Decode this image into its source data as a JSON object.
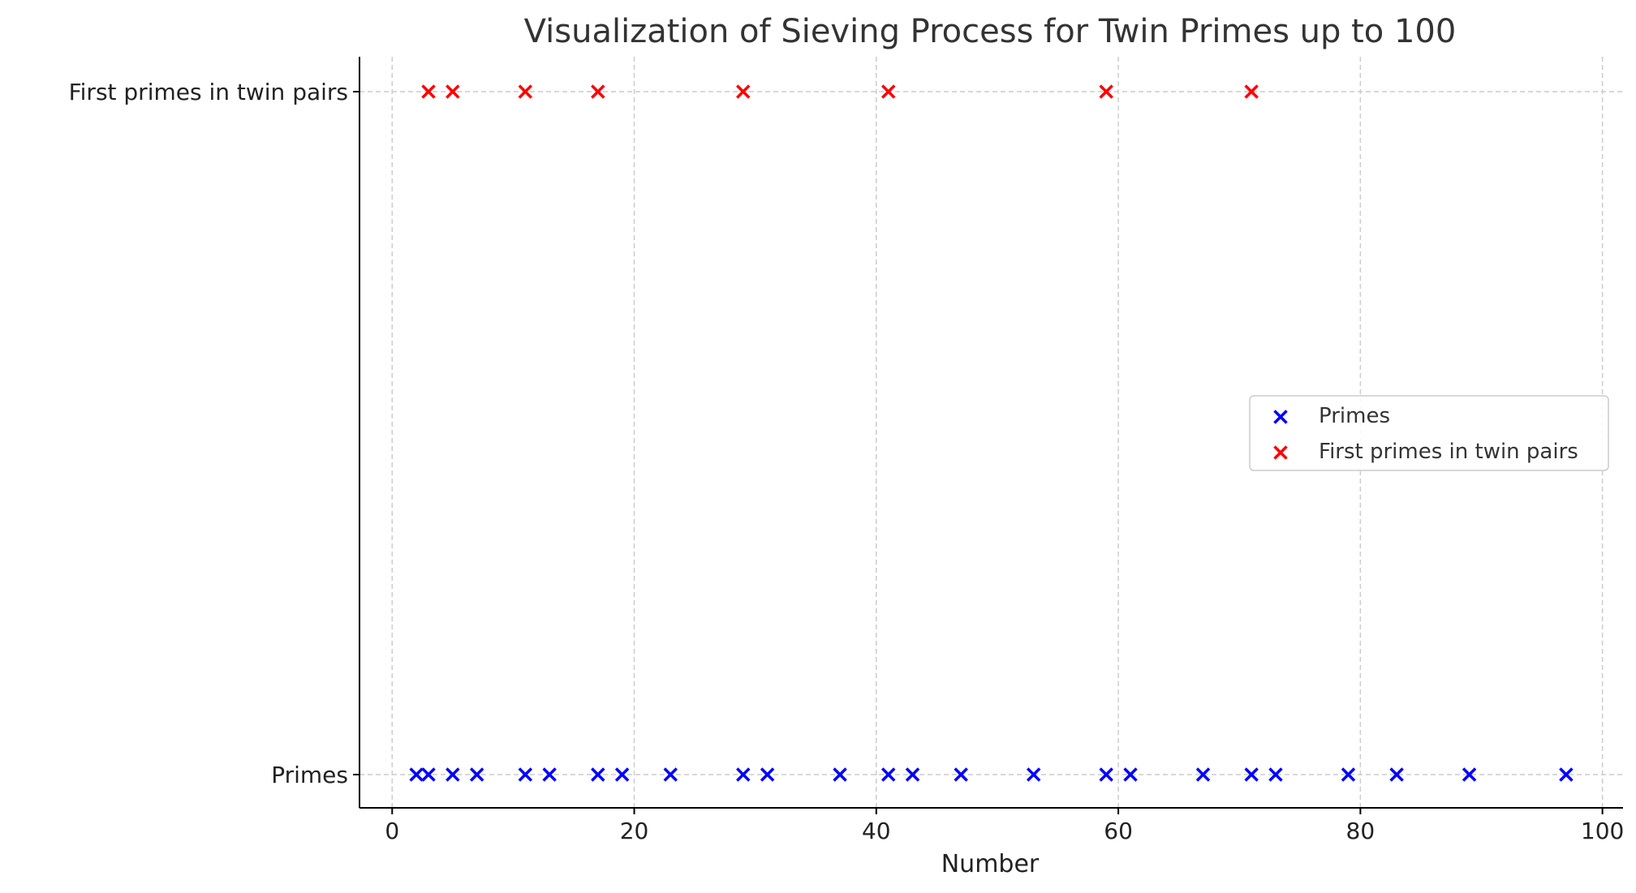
{
  "chart_data": {
    "type": "scatter",
    "title": "Visualization of Sieving Process for Twin Primes up to 100",
    "xlabel": "Number",
    "ylabel": "",
    "xlim": [
      -2.7,
      101.7
    ],
    "xticks": [
      0,
      20,
      40,
      60,
      80,
      100
    ],
    "ycategories": [
      "Primes",
      "First primes in twin pairs"
    ],
    "grid": true,
    "legend_position": "center-right",
    "series": [
      {
        "name": "Primes",
        "marker": "x",
        "color": "#0000ff",
        "category": "Primes",
        "x": [
          2,
          3,
          5,
          7,
          11,
          13,
          17,
          19,
          23,
          29,
          31,
          37,
          41,
          43,
          47,
          53,
          59,
          61,
          67,
          71,
          73,
          79,
          83,
          89,
          97
        ]
      },
      {
        "name": "First primes in twin pairs",
        "marker": "x",
        "color": "#ff0000",
        "category": "First primes in twin pairs",
        "x": [
          3,
          5,
          11,
          17,
          29,
          41,
          59,
          71
        ]
      }
    ]
  }
}
